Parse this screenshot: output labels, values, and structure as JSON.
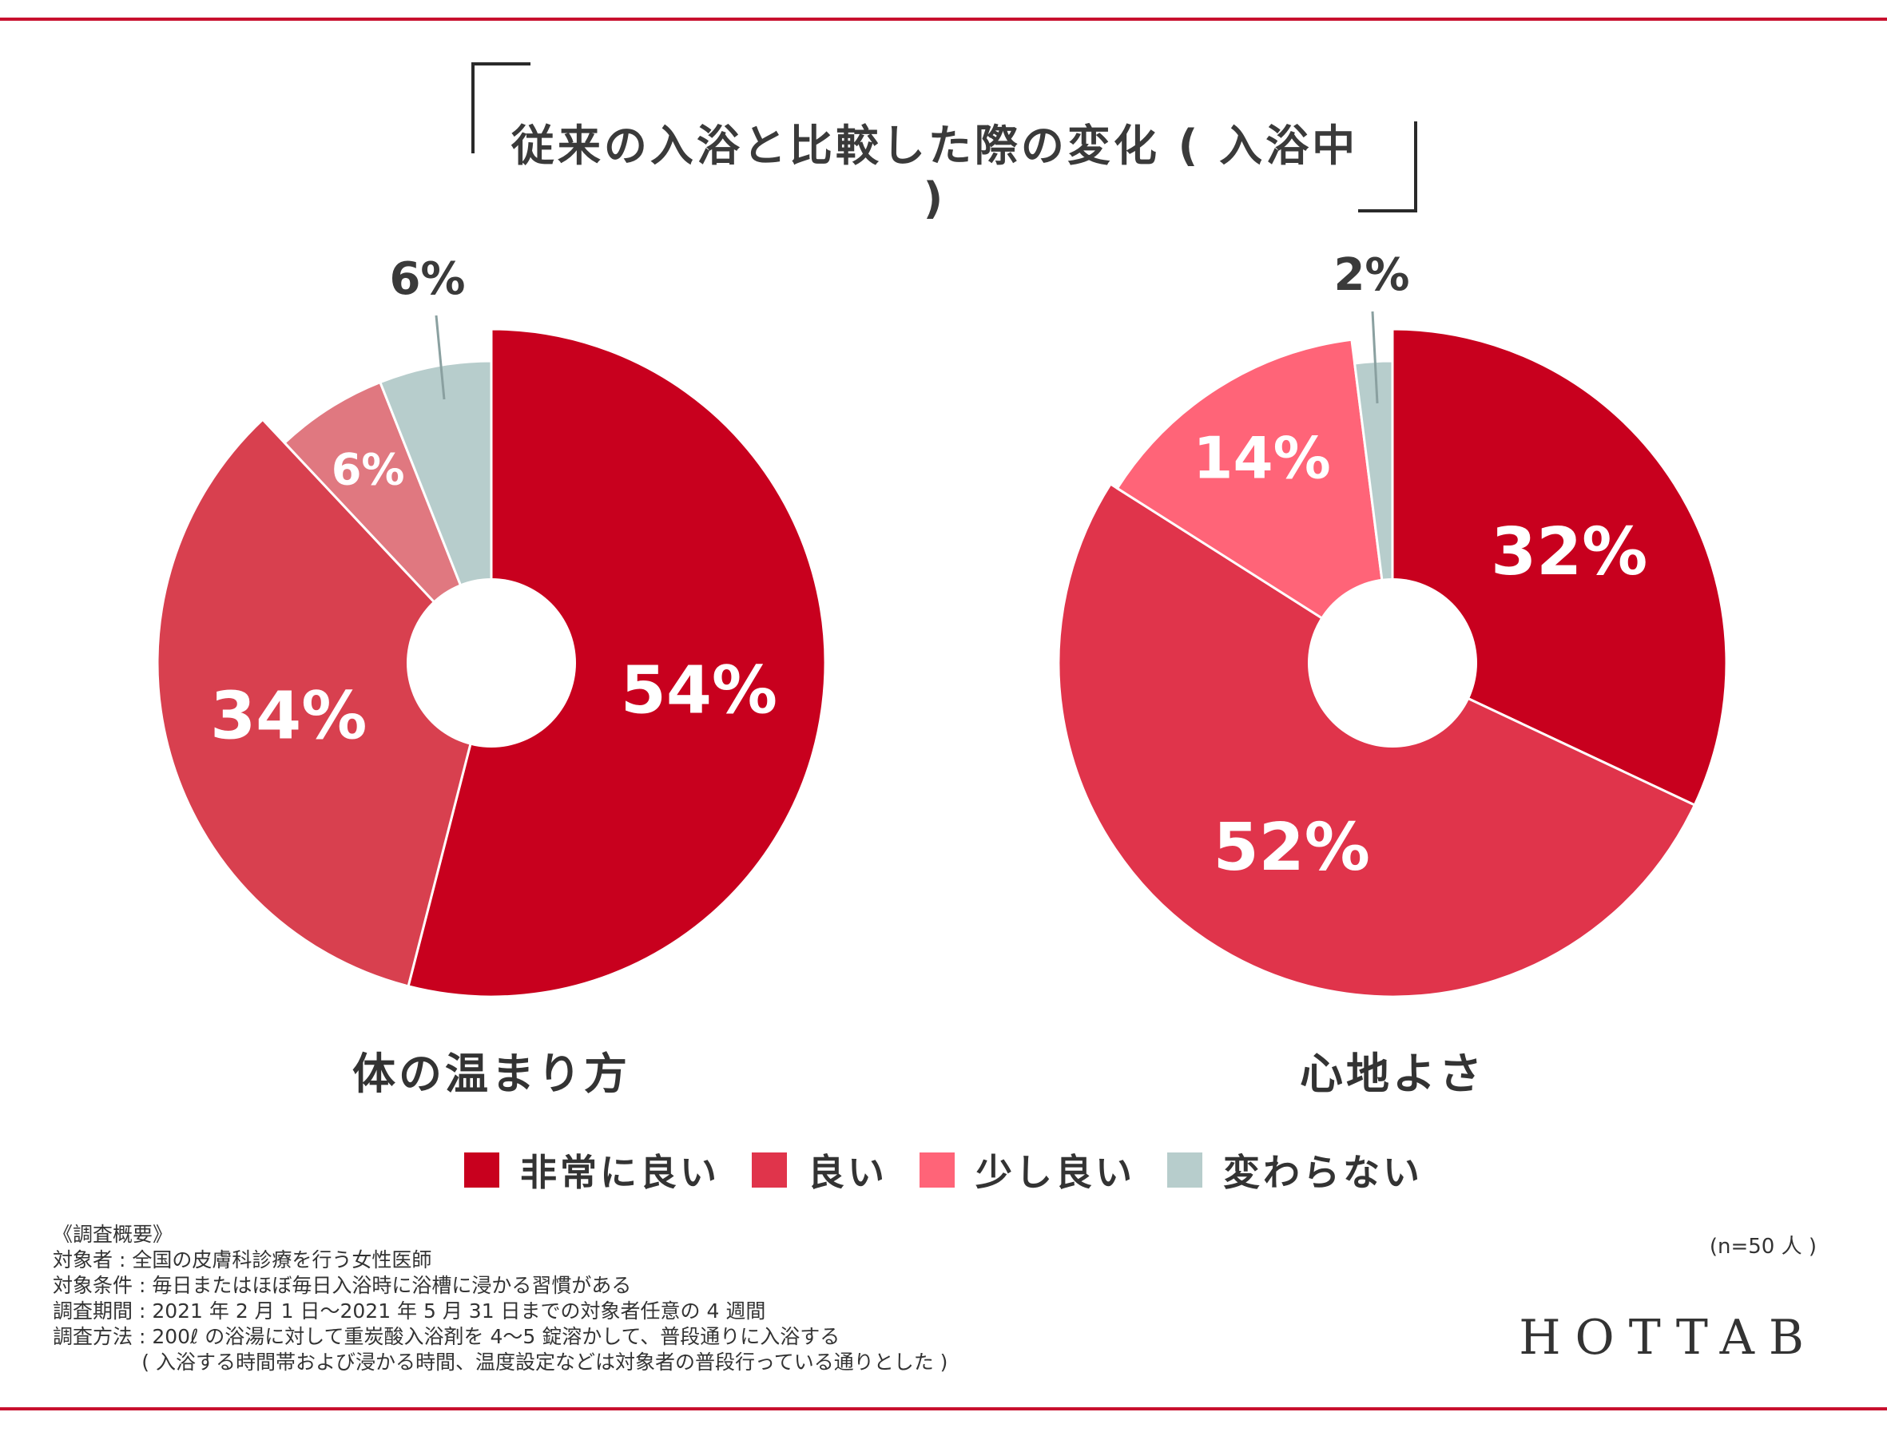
{
  "title": "従来の入浴と比較した際の変化 ( 入浴中 )",
  "legend": [
    {
      "label": "非常に良い",
      "color": "#c8001e"
    },
    {
      "label": "良い",
      "color": "#e0344b"
    },
    {
      "label": "少し良い",
      "color": "#ff6478"
    },
    {
      "label": "変わらない",
      "color": "#b7cdcc"
    }
  ],
  "chart_data": [
    {
      "type": "pie",
      "title": "体の温まり方",
      "categories": [
        "非常に良い",
        "良い",
        "少し良い",
        "変わらない"
      ],
      "values": [
        54,
        34,
        6,
        6
      ],
      "labels": [
        "54%",
        "34%",
        "6%",
        "6%"
      ],
      "colors": [
        "#c8001e",
        "#d8404f",
        "#e07880",
        "#b7cdcc"
      ],
      "donut": true
    },
    {
      "type": "pie",
      "title": "心地よさ",
      "categories": [
        "非常に良い",
        "良い",
        "少し良い",
        "変わらない"
      ],
      "values": [
        32,
        52,
        14,
        2
      ],
      "labels": [
        "32%",
        "52%",
        "14%",
        "2%"
      ],
      "colors": [
        "#c8001e",
        "#e0344b",
        "#ff6478",
        "#b7cdcc"
      ],
      "donut": true
    }
  ],
  "survey": {
    "heading": "《調査概要》",
    "lines": [
      "対象者 : 全国の皮膚科診療を行う女性医師",
      "対象条件 : 毎日またはほぼ毎日入浴時に浴槽に浸かる習慣がある",
      "調査期間 : 2021 年 2 月 1 日〜2021 年 5 月 31 日までの対象者任意の 4 週間",
      "調査方法 : 200ℓ の浴湯に対して重炭酸入浴剤を 4〜5 錠溶かして、普段通りに入浴する",
      "              ( 入浴する時間帯および浸かる時間、温度設定などは対象者の普段行っている通りとした )"
    ]
  },
  "sample_size": "(n=50 人 )",
  "brand": "HOTTAB"
}
